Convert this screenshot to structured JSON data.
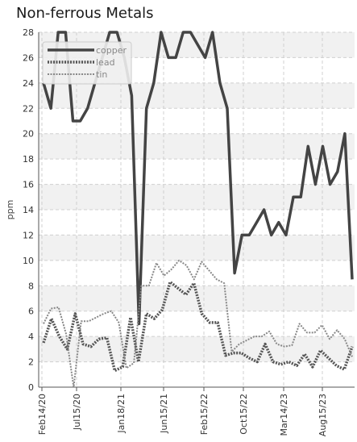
{
  "chart_data": {
    "type": "line",
    "title": "Non-ferrous Metals",
    "xlabel": "",
    "ylabel": "ppm",
    "ylim": [
      0,
      28
    ],
    "yticks": [
      0,
      2,
      4,
      6,
      8,
      10,
      12,
      14,
      16,
      18,
      20,
      22,
      24,
      26,
      28
    ],
    "xtick_labels": [
      "Feb14/20",
      "Jul15/20",
      "Jan18/21",
      "Jun15/21",
      "Feb15/22",
      "Oct15/22",
      "Mar14/23",
      "Aug15/23"
    ],
    "grid": true,
    "legend_position": "top-left",
    "colors": {
      "copper": "#444444",
      "lead": "#555555",
      "tin": "#888888",
      "grid": "#d0d0d0",
      "band": "#f1f1f1"
    },
    "series": [
      {
        "name": "copper",
        "values": [
          24,
          22,
          28,
          28,
          21,
          21,
          22,
          24,
          26,
          28,
          28,
          26,
          23,
          5,
          22,
          24,
          28,
          26,
          26,
          28,
          28,
          27,
          26,
          28,
          24,
          22,
          9,
          12,
          12,
          13,
          14,
          12,
          13,
          12,
          15,
          15,
          19,
          16,
          19,
          16,
          17,
          20,
          8.5
        ]
      },
      {
        "name": "lead",
        "values": [
          3.5,
          5.4,
          4,
          3,
          5.8,
          3.4,
          3.2,
          3.8,
          3.9,
          1.3,
          1.6,
          5.5,
          2,
          5.8,
          5.4,
          6.1,
          8.3,
          7.8,
          7.3,
          8.2,
          5.8,
          5.1,
          5.1,
          2.5,
          2.7,
          2.7,
          2.3,
          2,
          3.4,
          2,
          1.8,
          2,
          1.7,
          2.6,
          1.6,
          2.9,
          2.3,
          1.7,
          1.4,
          3.2
        ]
      },
      {
        "name": "tin",
        "values": [
          5,
          6.2,
          6.3,
          4.2,
          0,
          5.2,
          5.2,
          5.5,
          5.8,
          6,
          5.1,
          1.5,
          1.9,
          8,
          8,
          9.8,
          8.8,
          9.3,
          10,
          9.6,
          8.5,
          9.9,
          9.2,
          8.5,
          8.2,
          2.8,
          3.4,
          3.7,
          4,
          4,
          4.4,
          3.4,
          3.2,
          3.3,
          5,
          4.3,
          4.3,
          4.9,
          3.8,
          4.5,
          3.8,
          2.4
        ]
      }
    ]
  }
}
